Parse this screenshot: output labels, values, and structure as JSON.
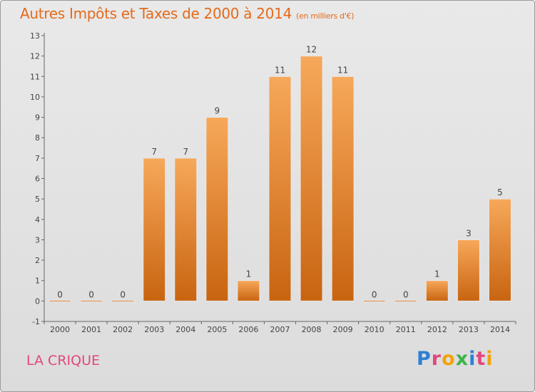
{
  "header": {
    "title": "Autres Impôts et Taxes de 2000 à 2014",
    "unit": "(en milliers d'€)"
  },
  "footer": {
    "commune": "LA CRIQUE",
    "logo": "Proxiti"
  },
  "colors": {
    "bar_light": "#f7a85a",
    "bar_dark": "#c86410",
    "title": "#e46a1a",
    "commune": "#e2477e"
  },
  "chart_data": {
    "type": "bar",
    "categories": [
      "2000",
      "2001",
      "2002",
      "2003",
      "2004",
      "2005",
      "2006",
      "2007",
      "2008",
      "2009",
      "2010",
      "2011",
      "2012",
      "2013",
      "2014"
    ],
    "values": [
      0,
      0,
      0,
      7,
      7,
      9,
      1,
      11,
      12,
      11,
      0,
      0,
      1,
      3,
      5
    ],
    "ylim": [
      -1,
      13
    ],
    "yticks": [
      -1,
      0,
      1,
      2,
      3,
      4,
      5,
      6,
      7,
      8,
      9,
      10,
      11,
      12,
      13
    ],
    "grid": false,
    "data_labels": true
  }
}
